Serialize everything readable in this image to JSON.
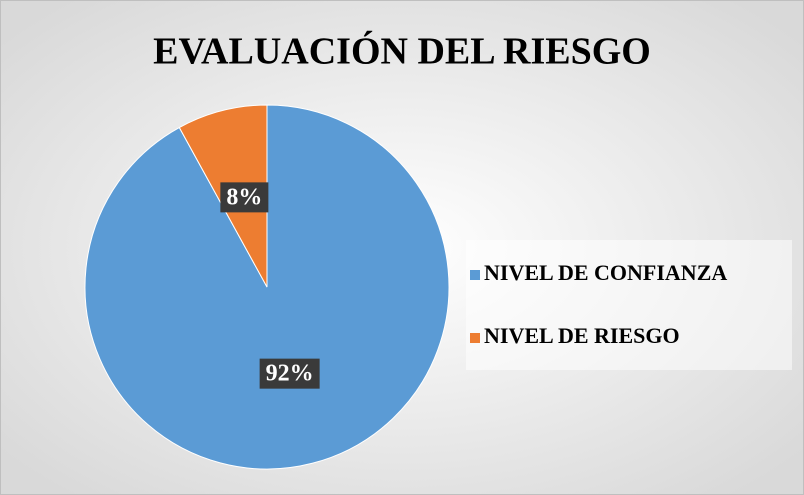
{
  "chart_data": {
    "type": "pie",
    "title": "EVALUACIÓN DEL RIESGO",
    "categories": [
      "NIVEL DE CONFIANZA",
      "NIVEL DE RIESGO"
    ],
    "values": [
      92,
      8
    ],
    "value_labels": [
      "92%",
      "8%"
    ],
    "colors": [
      "#5b9bd5",
      "#ed7d31"
    ],
    "legend": "right"
  }
}
